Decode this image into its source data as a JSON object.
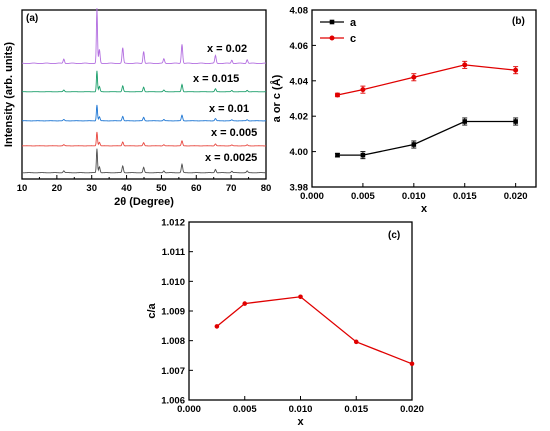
{
  "chart_data": [
    {
      "panel_label": "(a)",
      "type": "line",
      "xlabel": "2θ (Degree)",
      "ylabel": "Intensity (arb. units)",
      "xlim": [
        10,
        80
      ],
      "xticks": [
        10,
        20,
        30,
        40,
        50,
        60,
        70,
        80
      ],
      "peaks": [
        [
          22.0,
          0.08
        ],
        [
          31.5,
          1.0
        ],
        [
          32.2,
          0.25
        ],
        [
          38.9,
          0.28
        ],
        [
          44.9,
          0.22
        ],
        [
          50.7,
          0.08
        ],
        [
          55.9,
          0.35
        ],
        [
          65.5,
          0.14
        ],
        [
          70.2,
          0.06
        ],
        [
          74.6,
          0.07
        ]
      ],
      "series": [
        {
          "label": "x = 0.0025",
          "color": "#4d4d4d"
        },
        {
          "label": "x = 0.005",
          "color": "#e8473f"
        },
        {
          "label": "x = 0.01",
          "color": "#1f77d4"
        },
        {
          "label": "x = 0.015",
          "color": "#1a9e6a"
        },
        {
          "label": "x = 0.02",
          "color": "#b36fe0"
        }
      ]
    },
    {
      "panel_label": "(b)",
      "type": "line",
      "xlabel": "x",
      "ylabel": "a or c (Å)",
      "xlim": [
        0.0,
        0.022
      ],
      "ylim": [
        3.98,
        4.08
      ],
      "xticks": [
        "0.000",
        "0.005",
        "0.010",
        "0.015",
        "0.020"
      ],
      "yticks": [
        "3.98",
        "4.00",
        "4.02",
        "4.04",
        "4.06",
        "4.08"
      ],
      "legend_position": "top-left",
      "x": [
        0.0025,
        0.005,
        0.01,
        0.015,
        0.02
      ],
      "series": [
        {
          "name": "a",
          "color": "#000000",
          "marker": "square",
          "values": [
            3.998,
            3.998,
            4.004,
            4.017,
            4.017
          ],
          "errors": [
            0.001,
            0.002,
            0.002,
            0.002,
            0.002
          ]
        },
        {
          "name": "c",
          "color": "#e00000",
          "marker": "circle",
          "values": [
            4.032,
            4.035,
            4.042,
            4.049,
            4.046
          ],
          "errors": [
            0.001,
            0.002,
            0.002,
            0.002,
            0.002
          ]
        }
      ]
    },
    {
      "panel_label": "(c)",
      "type": "line",
      "xlabel": "x",
      "ylabel": "c/a",
      "xlim": [
        0.0,
        0.02
      ],
      "ylim": [
        1.006,
        1.012
      ],
      "xticks": [
        "0.000",
        "0.005",
        "0.010",
        "0.015",
        "0.020"
      ],
      "yticks": [
        "1.006",
        "1.007",
        "1.008",
        "1.009",
        "1.010",
        "1.011",
        "1.012"
      ],
      "x": [
        0.0025,
        0.005,
        0.01,
        0.015,
        0.02
      ],
      "series": [
        {
          "color": "#e00000",
          "marker": "circle",
          "values": [
            1.00848,
            1.00925,
            1.00948,
            1.00796,
            1.00722
          ]
        }
      ]
    }
  ]
}
